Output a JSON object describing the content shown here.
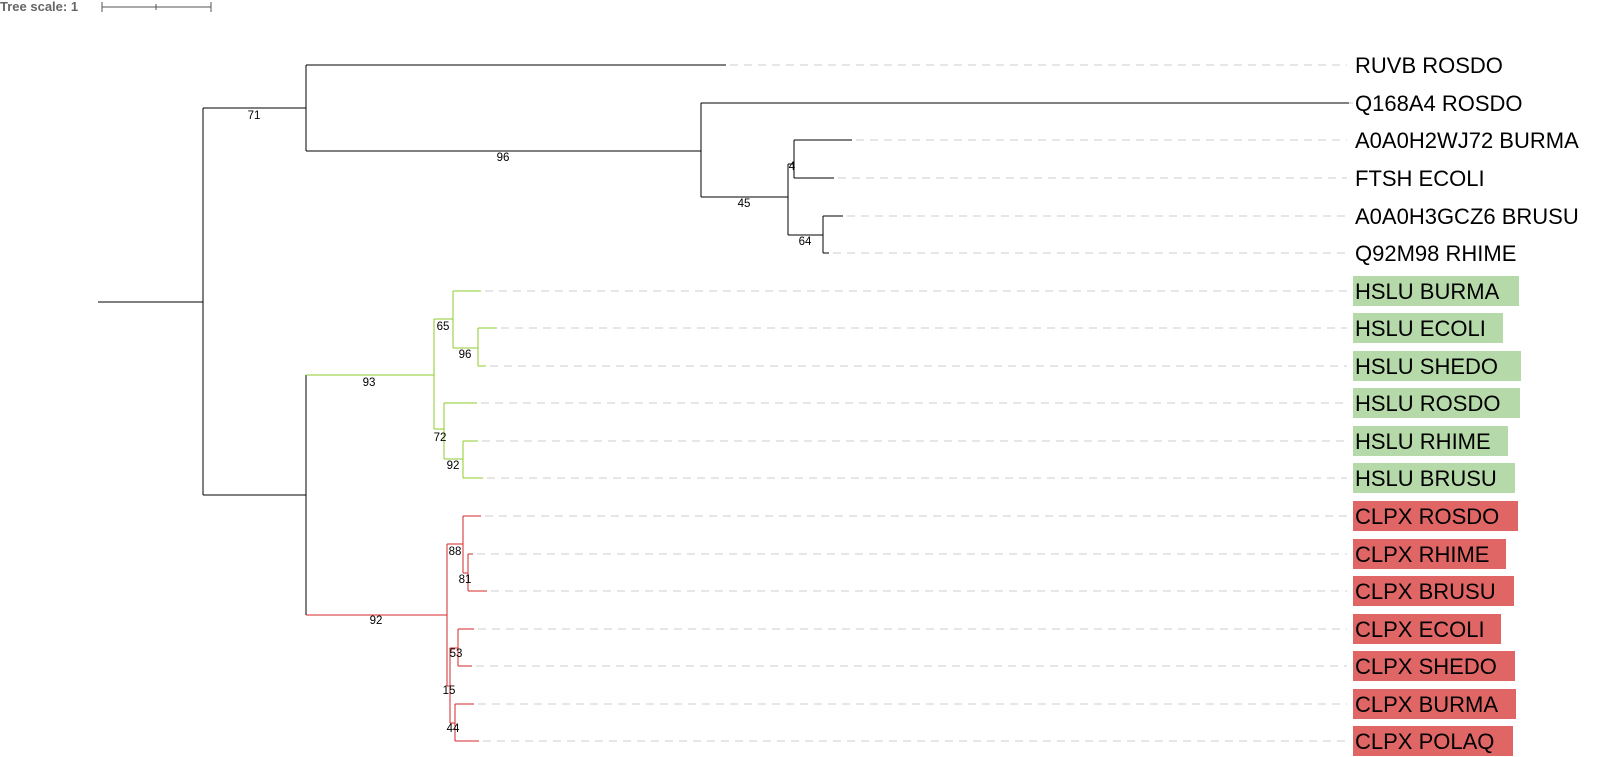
{
  "tree_scale_label": "Tree scale: 1",
  "colors": {
    "black_clade": "#000000",
    "hslu_clade": "#8fcc2b",
    "clpx_clade": "#d62728",
    "hslu_highlight": "#b5d9a8",
    "clpx_highlight": "#e06666",
    "guide_line": "#cccccc"
  },
  "leaves": [
    {
      "label": "RUVB ROSDO",
      "group": "none"
    },
    {
      "label": "Q168A4 ROSDO",
      "group": "none"
    },
    {
      "label": "A0A0H2WJ72 BURMA",
      "group": "none"
    },
    {
      "label": "FTSH ECOLI",
      "group": "none"
    },
    {
      "label": "A0A0H3GCZ6 BRUSU",
      "group": "none"
    },
    {
      "label": "Q92M98 RHIME",
      "group": "none"
    },
    {
      "label": "HSLU BURMA",
      "group": "hslu"
    },
    {
      "label": "HSLU ECOLI",
      "group": "hslu"
    },
    {
      "label": "HSLU SHEDO",
      "group": "hslu"
    },
    {
      "label": "HSLU ROSDO",
      "group": "hslu"
    },
    {
      "label": "HSLU RHIME",
      "group": "hslu"
    },
    {
      "label": "HSLU BRUSU",
      "group": "hslu"
    },
    {
      "label": "CLPX ROSDO",
      "group": "clpx"
    },
    {
      "label": "CLPX RHIME",
      "group": "clpx"
    },
    {
      "label": "CLPX BRUSU",
      "group": "clpx"
    },
    {
      "label": "CLPX ECOLI",
      "group": "clpx"
    },
    {
      "label": "CLPX SHEDO",
      "group": "clpx"
    },
    {
      "label": "CLPX BURMA",
      "group": "clpx"
    },
    {
      "label": "CLPX POLAQ",
      "group": "clpx"
    }
  ],
  "support_values": [
    "71",
    "96",
    "45",
    "4",
    "64",
    "93",
    "65",
    "96",
    "72",
    "92",
    "92",
    "88",
    "81",
    "15",
    "53",
    "44"
  ]
}
